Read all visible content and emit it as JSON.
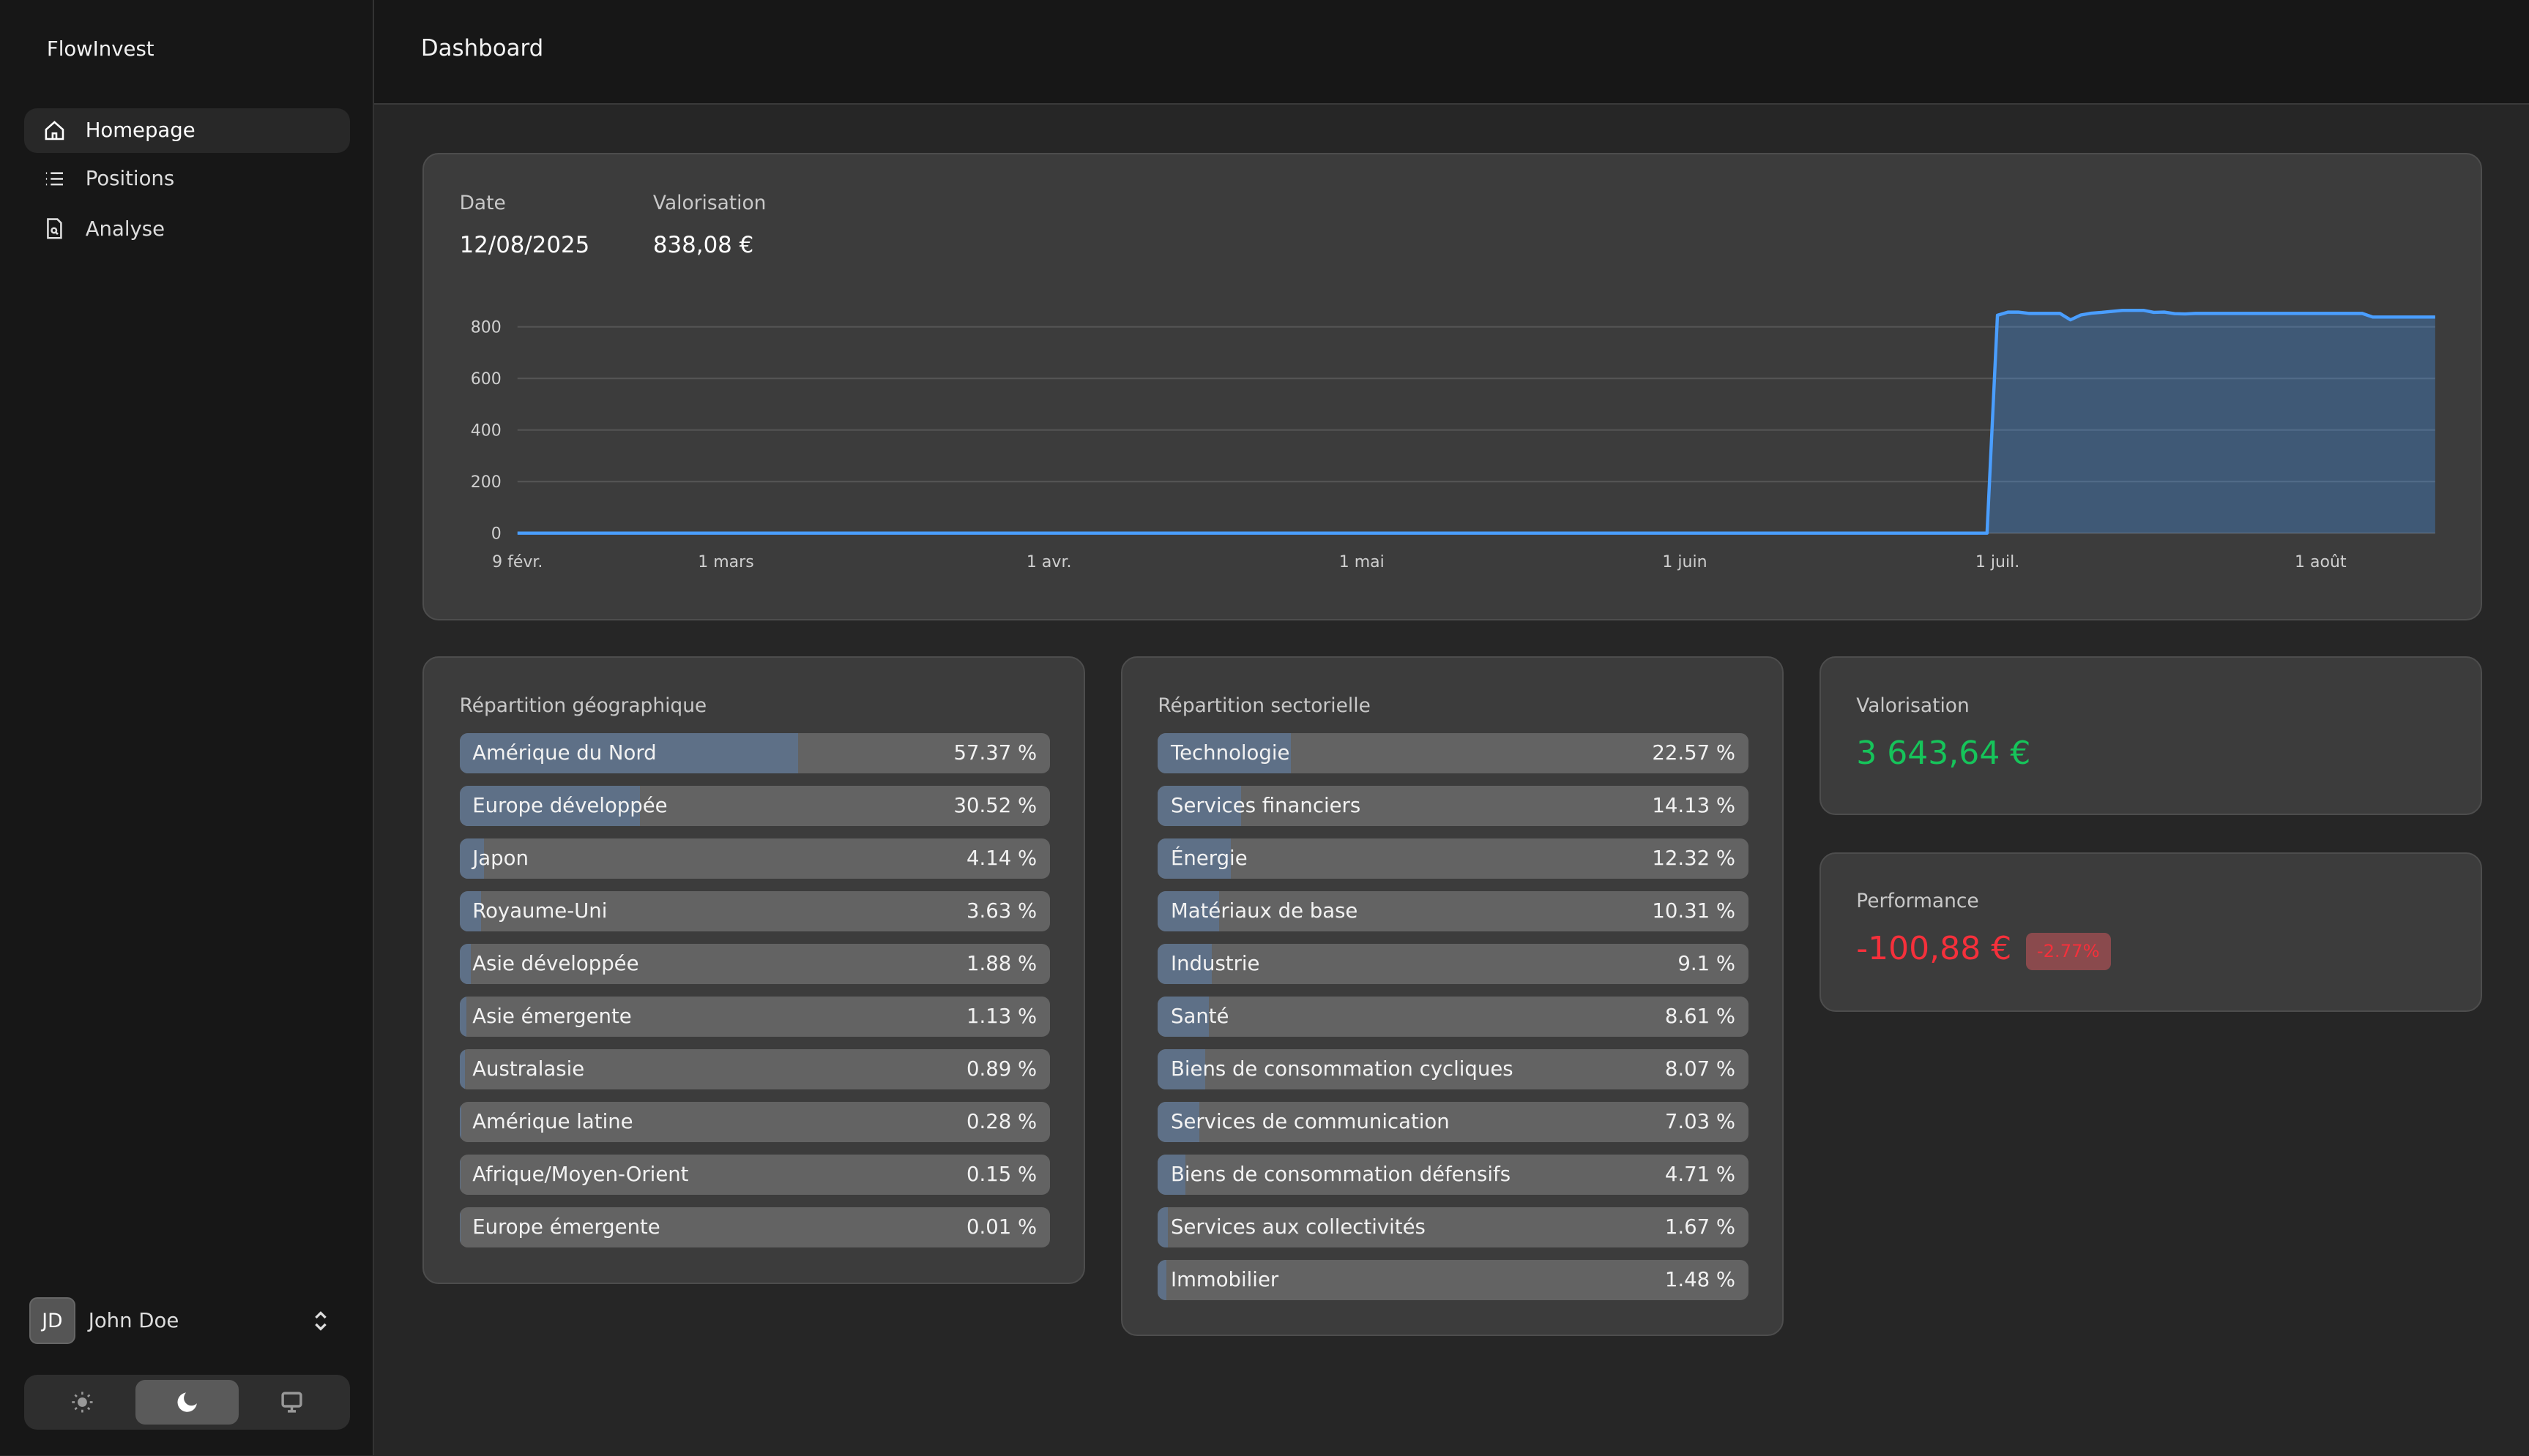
{
  "app": {
    "brand": "FlowInvest"
  },
  "sidebar": {
    "items": [
      {
        "label": "Homepage",
        "icon": "home-icon",
        "active": true
      },
      {
        "label": "Positions",
        "icon": "list-icon",
        "active": false
      },
      {
        "label": "Analyse",
        "icon": "file-search-icon",
        "active": false
      }
    ],
    "user": {
      "initials": "JD",
      "name": "John Doe"
    },
    "theme": {
      "options": [
        "light",
        "dark",
        "system"
      ],
      "selected": "dark"
    }
  },
  "header": {
    "title": "Dashboard"
  },
  "summary": {
    "date_label": "Date",
    "date_value": "12/08/2025",
    "valuation_label": "Valorisation",
    "valuation_value": "838,08 €"
  },
  "chart_data": {
    "type": "area",
    "x_ticks": [
      "9 févr.",
      "1 mars",
      "1 avr.",
      "1 mai",
      "1 juin",
      "1 juil.",
      "1 août"
    ],
    "x_tick_dates": [
      "2025-02-09",
      "2025-03-01",
      "2025-04-01",
      "2025-05-01",
      "2025-06-01",
      "2025-07-01",
      "2025-08-01"
    ],
    "y_ticks": [
      0,
      200,
      400,
      600,
      800
    ],
    "xlim": [
      "2025-02-09",
      "2025-08-12"
    ],
    "ylim": [
      0,
      1000
    ],
    "grid": true,
    "color": "#4a9eff",
    "points": [
      [
        "2025-02-09",
        0
      ],
      [
        "2025-06-30",
        0
      ],
      [
        "2025-07-01",
        845
      ],
      [
        "2025-07-02",
        857
      ],
      [
        "2025-07-03",
        857
      ],
      [
        "2025-07-04",
        852
      ],
      [
        "2025-07-07",
        852
      ],
      [
        "2025-07-08",
        827
      ],
      [
        "2025-07-09",
        846
      ],
      [
        "2025-07-10",
        853
      ],
      [
        "2025-07-11",
        856
      ],
      [
        "2025-07-13",
        864
      ],
      [
        "2025-07-15",
        864
      ],
      [
        "2025-07-16",
        856
      ],
      [
        "2025-07-17",
        857
      ],
      [
        "2025-07-18",
        851
      ],
      [
        "2025-07-19",
        850
      ],
      [
        "2025-07-20",
        852
      ],
      [
        "2025-08-05",
        852
      ],
      [
        "2025-08-06",
        838
      ],
      [
        "2025-08-12",
        838
      ]
    ]
  },
  "geo": {
    "title": "Répartition géographique",
    "items": [
      {
        "name": "Amérique du Nord",
        "pct": 57.37,
        "label": "57.37 %"
      },
      {
        "name": "Europe développée",
        "pct": 30.52,
        "label": "30.52 %"
      },
      {
        "name": "Japon",
        "pct": 4.14,
        "label": "4.14 %"
      },
      {
        "name": "Royaume-Uni",
        "pct": 3.63,
        "label": "3.63 %"
      },
      {
        "name": "Asie développée",
        "pct": 1.88,
        "label": "1.88 %"
      },
      {
        "name": "Asie émergente",
        "pct": 1.13,
        "label": "1.13 %"
      },
      {
        "name": "Australasie",
        "pct": 0.89,
        "label": "0.89 %"
      },
      {
        "name": "Amérique latine",
        "pct": 0.28,
        "label": "0.28 %"
      },
      {
        "name": "Afrique/Moyen-Orient",
        "pct": 0.15,
        "label": "0.15 %"
      },
      {
        "name": "Europe émergente",
        "pct": 0.01,
        "label": "0.01 %"
      }
    ]
  },
  "sector": {
    "title": "Répartition sectorielle",
    "items": [
      {
        "name": "Technologie",
        "pct": 22.57,
        "label": "22.57 %"
      },
      {
        "name": "Services financiers",
        "pct": 14.13,
        "label": "14.13 %"
      },
      {
        "name": "Énergie",
        "pct": 12.32,
        "label": "12.32 %"
      },
      {
        "name": "Matériaux de base",
        "pct": 10.31,
        "label": "10.31 %"
      },
      {
        "name": "Industrie",
        "pct": 9.1,
        "label": "9.1 %"
      },
      {
        "name": "Santé",
        "pct": 8.61,
        "label": "8.61 %"
      },
      {
        "name": "Biens de consommation cycliques",
        "pct": 8.07,
        "label": "8.07 %"
      },
      {
        "name": "Services de communication",
        "pct": 7.03,
        "label": "7.03 %"
      },
      {
        "name": "Biens de consommation défensifs",
        "pct": 4.71,
        "label": "4.71 %"
      },
      {
        "name": "Services aux collectivités",
        "pct": 1.67,
        "label": "1.67 %"
      },
      {
        "name": "Immobilier",
        "pct": 1.48,
        "label": "1.48 %"
      }
    ]
  },
  "valuation": {
    "label": "Valorisation",
    "value": "3 643,64 €",
    "color": "#16c45a"
  },
  "performance": {
    "label": "Performance",
    "value": "-100,88 €",
    "badge": "-2.77%",
    "color": "#f5303b",
    "badge_bg": "#8a4a4d"
  }
}
